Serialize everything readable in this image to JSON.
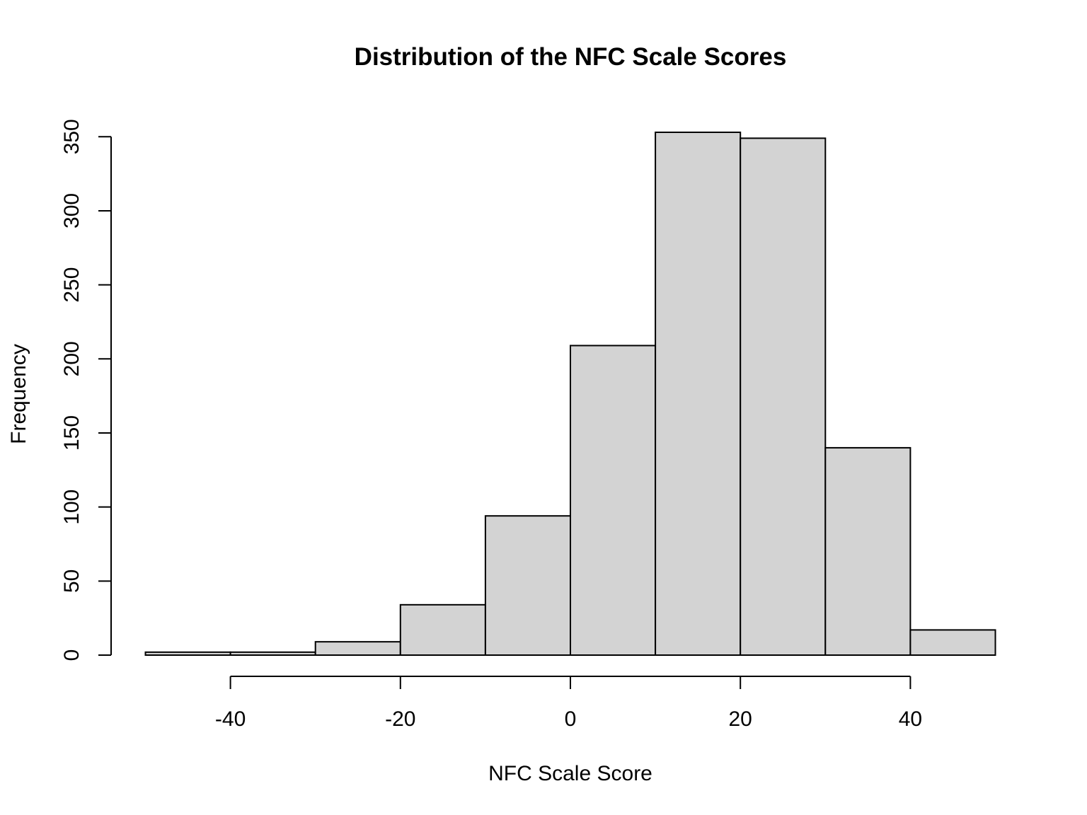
{
  "chart_data": {
    "type": "bar",
    "title": "Distribution of the NFC Scale Scores",
    "xlabel": "NFC Scale Score",
    "ylabel": "Frequency",
    "bins": [
      {
        "x0": -50,
        "x1": -40,
        "count": 2
      },
      {
        "x0": -40,
        "x1": -30,
        "count": 2
      },
      {
        "x0": -30,
        "x1": -20,
        "count": 9
      },
      {
        "x0": -20,
        "x1": -10,
        "count": 34
      },
      {
        "x0": -10,
        "x1": 0,
        "count": 94
      },
      {
        "x0": 0,
        "x1": 10,
        "count": 209
      },
      {
        "x0": 10,
        "x1": 20,
        "count": 353
      },
      {
        "x0": 20,
        "x1": 30,
        "count": 349
      },
      {
        "x0": 30,
        "x1": 40,
        "count": 140
      },
      {
        "x0": 40,
        "x1": 50,
        "count": 17
      }
    ],
    "xlim": [
      -50,
      50
    ],
    "ylim": [
      0,
      353
    ],
    "x_ticks": [
      -40,
      -20,
      0,
      20,
      40
    ],
    "x_tick_labels": [
      "-40",
      "-20",
      "0",
      "20",
      "40"
    ],
    "y_ticks": [
      0,
      50,
      100,
      150,
      200,
      250,
      300,
      350
    ],
    "y_tick_labels": [
      "0",
      "50",
      "100",
      "150",
      "200",
      "250",
      "300",
      "350"
    ],
    "grid": false,
    "colors": {
      "bar_fill": "#d3d3d3",
      "bar_stroke": "#000000"
    }
  }
}
